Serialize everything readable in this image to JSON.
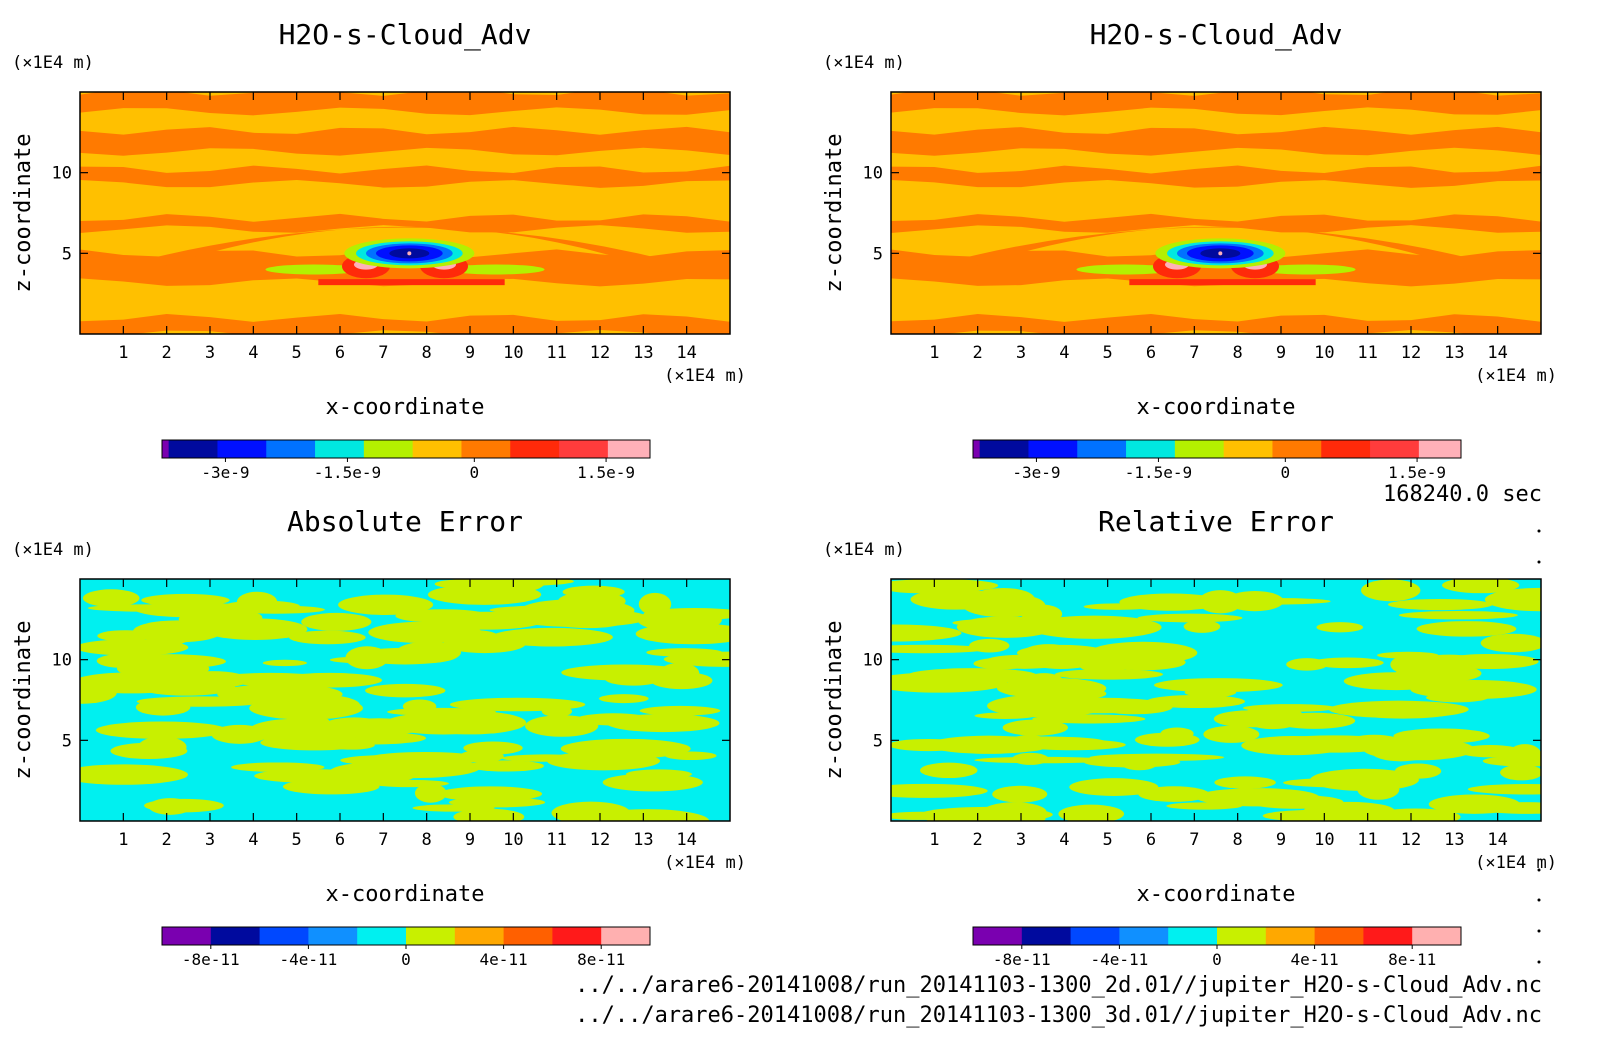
{
  "time_label": "168240.0 sec",
  "files": [
    "../../arare6-20141008/run_20141103-1300_2d.01//jupiter_H2O-s-Cloud_Adv.nc",
    "../../arare6-20141008/run_20141103-1300_3d.01//jupiter_H2O-s-Cloud_Adv.nc"
  ],
  "colors": {
    "field": [
      "#7a00b0",
      "#000a9e",
      "#0010ff",
      "#0072ff",
      "#00e8e0",
      "#b4f000",
      "#ffc000",
      "#ff7a00",
      "#ff2a0a",
      "#ff3c3c",
      "#ffb0b8"
    ],
    "error": [
      "#7a00b0",
      "#000a9e",
      "#0048ff",
      "#1090ff",
      "#00f0f0",
      "#c8f000",
      "#ffa800",
      "#ff6000",
      "#ff1a1a",
      "#ffb0b0"
    ]
  },
  "chart_data": [
    {
      "type": "heatmap",
      "title": "H2O-s-Cloud_Adv",
      "xlabel": "x-coordinate",
      "ylabel": "z-coordinate",
      "x_unit": "(×1E4 m)",
      "y_unit": "(×1E4 m)",
      "x_ticks": [
        "1",
        "2",
        "3",
        "4",
        "5",
        "6",
        "7",
        "8",
        "9",
        "10",
        "11",
        "12",
        "13",
        "14"
      ],
      "y_ticks": [
        "5",
        "10"
      ],
      "xlim": [
        0,
        15
      ],
      "ylim": [
        0,
        15
      ],
      "colorbar_ticks": [
        "-3e-9",
        "-1.5e-9",
        "0",
        "1.5e-9"
      ]
    },
    {
      "type": "heatmap",
      "title": "H2O-s-Cloud_Adv",
      "xlabel": "x-coordinate",
      "ylabel": "z-coordinate",
      "x_unit": "(×1E4 m)",
      "y_unit": "(×1E4 m)",
      "x_ticks": [
        "1",
        "2",
        "3",
        "4",
        "5",
        "6",
        "7",
        "8",
        "9",
        "10",
        "11",
        "12",
        "13",
        "14"
      ],
      "y_ticks": [
        "5",
        "10"
      ],
      "xlim": [
        0,
        15
      ],
      "ylim": [
        0,
        15
      ],
      "colorbar_ticks": [
        "-3e-9",
        "-1.5e-9",
        "0",
        "1.5e-9"
      ]
    },
    {
      "type": "heatmap",
      "title": "Absolute Error",
      "xlabel": "x-coordinate",
      "ylabel": "z-coordinate",
      "x_unit": "(×1E4 m)",
      "y_unit": "(×1E4 m)",
      "x_ticks": [
        "1",
        "2",
        "3",
        "4",
        "5",
        "6",
        "7",
        "8",
        "9",
        "10",
        "11",
        "12",
        "13",
        "14"
      ],
      "y_ticks": [
        "5",
        "10"
      ],
      "xlim": [
        0,
        15
      ],
      "ylim": [
        0,
        15
      ],
      "colorbar_ticks": [
        "-8e-11",
        "-4e-11",
        "0",
        "4e-11",
        "8e-11"
      ]
    },
    {
      "type": "heatmap",
      "title": "Relative Error",
      "xlabel": "x-coordinate",
      "ylabel": "z-coordinate",
      "x_unit": "(×1E4 m)",
      "y_unit": "(×1E4 m)",
      "x_ticks": [
        "1",
        "2",
        "3",
        "4",
        "5",
        "6",
        "7",
        "8",
        "9",
        "10",
        "11",
        "12",
        "13",
        "14"
      ],
      "y_ticks": [
        "5",
        "10"
      ],
      "xlim": [
        0,
        15
      ],
      "ylim": [
        0,
        15
      ],
      "colorbar_ticks": [
        "-8e-11",
        "-4e-11",
        "0",
        "4e-11",
        "8e-11"
      ]
    }
  ]
}
